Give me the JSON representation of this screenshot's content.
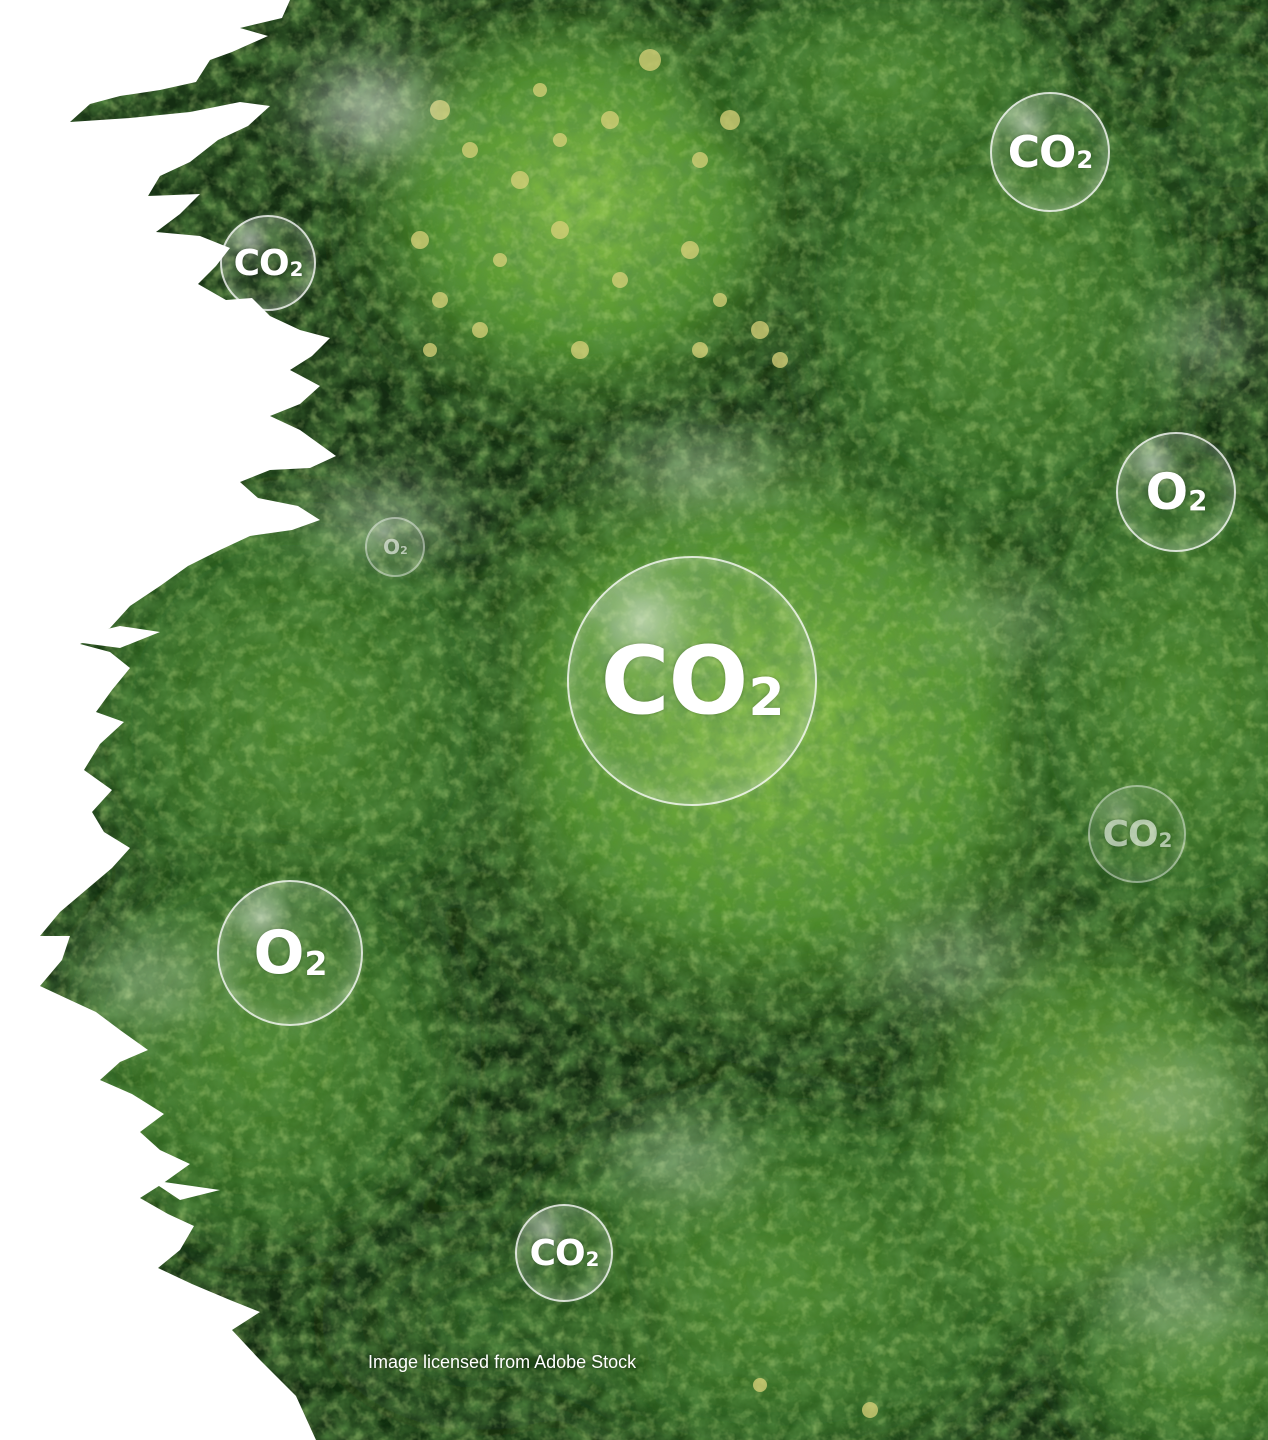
{
  "photo": {
    "subject": "forest-canopy-aerial",
    "palette": {
      "deep": "#10260f",
      "mid": "#2f6a22",
      "light": "#6fa83a",
      "highlight": "#a7cf5a",
      "flower": "#d9d27a",
      "mist": "#e8efe6",
      "edge": "#ffffff"
    }
  },
  "bubbles": [
    {
      "id": "main",
      "formula": "CO",
      "sub": "2"
    },
    {
      "id": "top-right",
      "formula": "CO",
      "sub": "2"
    },
    {
      "id": "top-left",
      "formula": "CO",
      "sub": "2"
    },
    {
      "id": "right-o2",
      "formula": "O",
      "sub": "2"
    },
    {
      "id": "small-o2",
      "formula": "O",
      "sub": "2"
    },
    {
      "id": "right-co2",
      "formula": "CO",
      "sub": "2"
    },
    {
      "id": "left-o2",
      "formula": "O",
      "sub": "2"
    },
    {
      "id": "bottom-co2",
      "formula": "CO",
      "sub": "2"
    }
  ],
  "caption": "Image licensed from Adobe Stock"
}
